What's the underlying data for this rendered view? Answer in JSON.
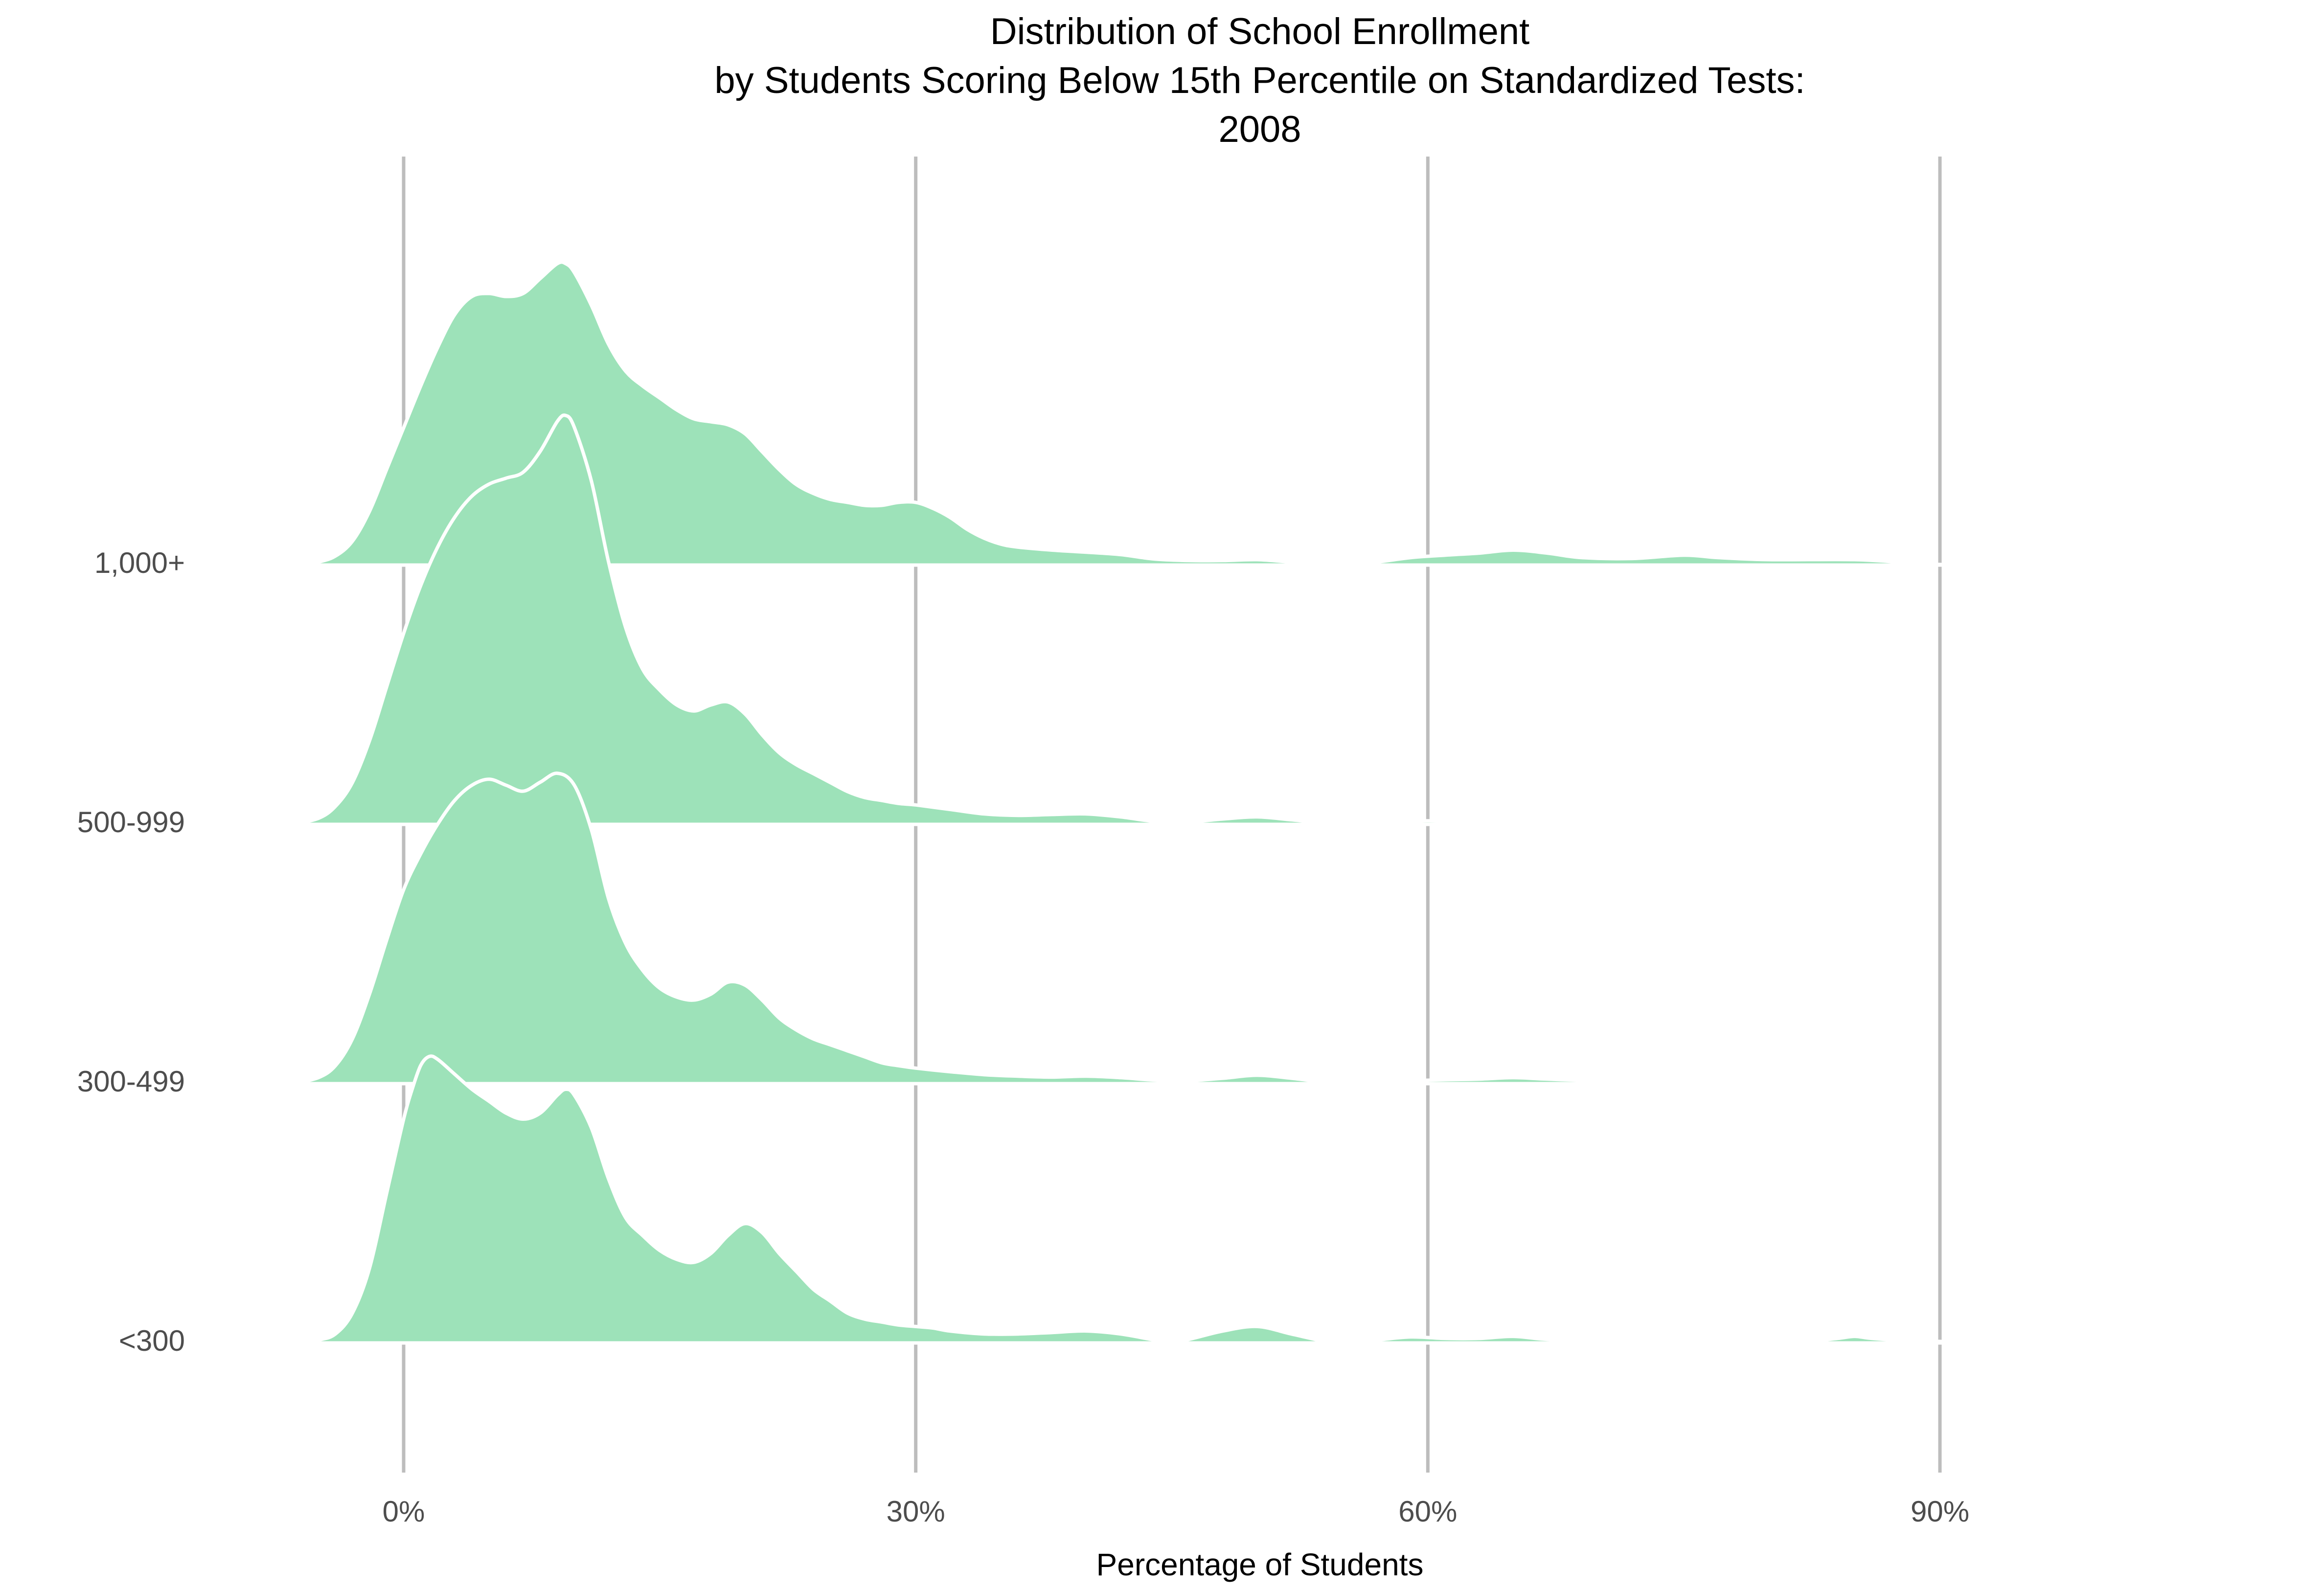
{
  "chart_data": {
    "type": "ridgeline",
    "title": [
      "Distribution of School Enrollment",
      "by Students Scoring Below 15th Percentile on Standardized Tests:",
      "2008"
    ],
    "xlabel": "Percentage of Students",
    "ylabel": "",
    "x_ticks": [
      {
        "value": 0,
        "label": "0%"
      },
      {
        "value": 30,
        "label": "30%"
      },
      {
        "value": 60,
        "label": "60%"
      },
      {
        "value": 90,
        "label": "90%"
      }
    ],
    "xlim": [
      -6.5,
      110
    ],
    "grid": {
      "vertical": true,
      "horizontal": false
    },
    "fill_color": "#9de2b9",
    "outline_color": "#ffffff",
    "gridline_color": "#bdbdbd",
    "density_scale_max": 1.0,
    "series": [
      {
        "name": "<300",
        "points": [
          [
            -6.5,
            0
          ],
          [
            -5,
            0.01
          ],
          [
            -4,
            0.03
          ],
          [
            -3,
            0.1
          ],
          [
            -2,
            0.25
          ],
          [
            -1,
            0.5
          ],
          [
            0,
            0.75
          ],
          [
            0.5,
            0.85
          ],
          [
            1,
            0.93
          ],
          [
            1.5,
            0.96
          ],
          [
            2,
            0.95
          ],
          [
            3,
            0.9
          ],
          [
            4,
            0.85
          ],
          [
            5,
            0.81
          ],
          [
            6,
            0.77
          ],
          [
            7,
            0.75
          ],
          [
            8,
            0.77
          ],
          [
            9,
            0.83
          ],
          [
            9.5,
            0.85
          ],
          [
            10,
            0.83
          ],
          [
            11,
            0.72
          ],
          [
            12,
            0.55
          ],
          [
            13,
            0.42
          ],
          [
            14,
            0.36
          ],
          [
            15,
            0.31
          ],
          [
            16,
            0.28
          ],
          [
            17,
            0.27
          ],
          [
            18,
            0.3
          ],
          [
            19,
            0.36
          ],
          [
            20,
            0.4
          ],
          [
            21,
            0.37
          ],
          [
            22,
            0.3
          ],
          [
            23,
            0.24
          ],
          [
            24,
            0.18
          ],
          [
            25,
            0.14
          ],
          [
            26,
            0.1
          ],
          [
            27,
            0.08
          ],
          [
            28,
            0.07
          ],
          [
            29,
            0.06
          ],
          [
            30,
            0.055
          ],
          [
            31,
            0.05
          ],
          [
            32,
            0.04
          ],
          [
            34,
            0.03
          ],
          [
            36,
            0.03
          ],
          [
            38,
            0.035
          ],
          [
            40,
            0.04
          ],
          [
            42,
            0.03
          ],
          [
            44,
            0.01
          ],
          [
            45,
            0.005
          ],
          [
            46,
            0.012
          ],
          [
            48,
            0.04
          ],
          [
            50,
            0.055
          ],
          [
            52,
            0.03
          ],
          [
            54,
            0.005
          ],
          [
            55,
            0.003
          ],
          [
            57,
            0.01
          ],
          [
            59,
            0.02
          ],
          [
            61,
            0.015
          ],
          [
            63,
            0.015
          ],
          [
            65,
            0.022
          ],
          [
            67,
            0.012
          ],
          [
            70,
            0.01
          ],
          [
            75,
            0.008
          ],
          [
            78,
            0.004
          ],
          [
            80,
            0.002
          ],
          [
            82,
            0.004
          ],
          [
            84,
            0.015
          ],
          [
            85,
            0.022
          ],
          [
            86,
            0.015
          ],
          [
            88,
            0.008
          ],
          [
            90,
            0.005
          ],
          [
            92,
            0.004
          ],
          [
            94,
            0.002
          ],
          [
            96,
            0.001
          ],
          [
            98,
            0.004
          ],
          [
            100,
            0.008
          ],
          [
            102,
            0.004
          ],
          [
            103,
            0
          ]
        ]
      },
      {
        "name": "300-499",
        "points": [
          [
            -6.5,
            0
          ],
          [
            -5,
            0.02
          ],
          [
            -4,
            0.06
          ],
          [
            -3,
            0.15
          ],
          [
            -2,
            0.3
          ],
          [
            -1,
            0.48
          ],
          [
            0,
            0.65
          ],
          [
            1,
            0.77
          ],
          [
            2,
            0.87
          ],
          [
            3,
            0.95
          ],
          [
            4,
            1.0
          ],
          [
            5,
            1.02
          ],
          [
            6,
            1.0
          ],
          [
            7,
            0.98
          ],
          [
            8,
            1.01
          ],
          [
            9,
            1.04
          ],
          [
            10,
            1.0
          ],
          [
            11,
            0.85
          ],
          [
            12,
            0.62
          ],
          [
            13,
            0.47
          ],
          [
            14,
            0.38
          ],
          [
            15,
            0.32
          ],
          [
            16,
            0.29
          ],
          [
            17,
            0.28
          ],
          [
            18,
            0.3
          ],
          [
            19,
            0.34
          ],
          [
            20,
            0.33
          ],
          [
            21,
            0.28
          ],
          [
            22,
            0.22
          ],
          [
            23,
            0.18
          ],
          [
            24,
            0.15
          ],
          [
            25,
            0.13
          ],
          [
            26,
            0.11
          ],
          [
            27,
            0.09
          ],
          [
            28,
            0.07
          ],
          [
            29,
            0.06
          ],
          [
            30,
            0.052
          ],
          [
            32,
            0.04
          ],
          [
            34,
            0.03
          ],
          [
            36,
            0.025
          ],
          [
            38,
            0.022
          ],
          [
            40,
            0.025
          ],
          [
            42,
            0.02
          ],
          [
            44,
            0.012
          ],
          [
            46,
            0.01
          ],
          [
            48,
            0.018
          ],
          [
            50,
            0.028
          ],
          [
            52,
            0.018
          ],
          [
            54,
            0.005
          ],
          [
            55,
            0.003
          ],
          [
            57,
            0.005
          ],
          [
            59,
            0.01
          ],
          [
            61,
            0.013
          ],
          [
            63,
            0.015
          ],
          [
            65,
            0.02
          ],
          [
            67,
            0.015
          ],
          [
            70,
            0.01
          ],
          [
            75,
            0.01
          ],
          [
            80,
            0.008
          ],
          [
            85,
            0.004
          ],
          [
            88,
            0
          ]
        ]
      },
      {
        "name": "500-999",
        "points": [
          [
            -6.5,
            0
          ],
          [
            -5,
            0.02
          ],
          [
            -4,
            0.06
          ],
          [
            -3,
            0.14
          ],
          [
            -2,
            0.28
          ],
          [
            -1,
            0.46
          ],
          [
            0,
            0.64
          ],
          [
            1,
            0.8
          ],
          [
            2,
            0.93
          ],
          [
            3,
            1.03
          ],
          [
            4,
            1.1
          ],
          [
            5,
            1.14
          ],
          [
            6,
            1.16
          ],
          [
            7,
            1.18
          ],
          [
            8,
            1.25
          ],
          [
            9,
            1.35
          ],
          [
            9.5,
            1.37
          ],
          [
            10,
            1.33
          ],
          [
            11,
            1.15
          ],
          [
            12,
            0.88
          ],
          [
            13,
            0.66
          ],
          [
            14,
            0.52
          ],
          [
            15,
            0.45
          ],
          [
            16,
            0.4
          ],
          [
            17,
            0.38
          ],
          [
            18,
            0.4
          ],
          [
            19,
            0.41
          ],
          [
            20,
            0.37
          ],
          [
            21,
            0.3
          ],
          [
            22,
            0.24
          ],
          [
            23,
            0.2
          ],
          [
            24,
            0.17
          ],
          [
            25,
            0.14
          ],
          [
            26,
            0.11
          ],
          [
            27,
            0.09
          ],
          [
            28,
            0.08
          ],
          [
            29,
            0.07
          ],
          [
            30,
            0.065
          ],
          [
            32,
            0.05
          ],
          [
            34,
            0.035
          ],
          [
            36,
            0.03
          ],
          [
            38,
            0.033
          ],
          [
            40,
            0.035
          ],
          [
            42,
            0.025
          ],
          [
            44,
            0.01
          ],
          [
            46,
            0.008
          ],
          [
            48,
            0.018
          ],
          [
            50,
            0.025
          ],
          [
            52,
            0.015
          ],
          [
            54,
            0.005
          ],
          [
            56,
            0.005
          ],
          [
            58,
            0.007
          ],
          [
            60,
            0.012
          ],
          [
            62,
            0.008
          ],
          [
            65,
            0.006
          ],
          [
            70,
            0.005
          ],
          [
            75,
            0.003
          ],
          [
            80,
            0.004
          ],
          [
            85,
            0.003
          ],
          [
            88,
            0
          ]
        ]
      },
      {
        "name": "1,000+",
        "points": [
          [
            -6,
            0
          ],
          [
            -5,
            0.01
          ],
          [
            -4,
            0.03
          ],
          [
            -3,
            0.08
          ],
          [
            -2,
            0.18
          ],
          [
            -1,
            0.32
          ],
          [
            0,
            0.46
          ],
          [
            1,
            0.6
          ],
          [
            2,
            0.73
          ],
          [
            3,
            0.84
          ],
          [
            4,
            0.9
          ],
          [
            5,
            0.91
          ],
          [
            6,
            0.9
          ],
          [
            7,
            0.91
          ],
          [
            8,
            0.96
          ],
          [
            9,
            1.01
          ],
          [
            9.5,
            1.01
          ],
          [
            10,
            0.98
          ],
          [
            11,
            0.87
          ],
          [
            12,
            0.74
          ],
          [
            13,
            0.65
          ],
          [
            14,
            0.6
          ],
          [
            15,
            0.56
          ],
          [
            16,
            0.52
          ],
          [
            17,
            0.49
          ],
          [
            18,
            0.48
          ],
          [
            19,
            0.47
          ],
          [
            20,
            0.44
          ],
          [
            21,
            0.38
          ],
          [
            22,
            0.32
          ],
          [
            23,
            0.27
          ],
          [
            24,
            0.24
          ],
          [
            25,
            0.22
          ],
          [
            26,
            0.21
          ],
          [
            27,
            0.2
          ],
          [
            28,
            0.2
          ],
          [
            29,
            0.21
          ],
          [
            30,
            0.21
          ],
          [
            31,
            0.19
          ],
          [
            32,
            0.16
          ],
          [
            33,
            0.12
          ],
          [
            34,
            0.09
          ],
          [
            35,
            0.07
          ],
          [
            36,
            0.06
          ],
          [
            38,
            0.05
          ],
          [
            40,
            0.043
          ],
          [
            42,
            0.035
          ],
          [
            44,
            0.02
          ],
          [
            46,
            0.015
          ],
          [
            48,
            0.015
          ],
          [
            50,
            0.018
          ],
          [
            52,
            0.01
          ],
          [
            54,
            0.002
          ],
          [
            55,
            0.001
          ],
          [
            57,
            0.01
          ],
          [
            59,
            0.025
          ],
          [
            61,
            0.033
          ],
          [
            63,
            0.04
          ],
          [
            65,
            0.05
          ],
          [
            67,
            0.04
          ],
          [
            69,
            0.025
          ],
          [
            72,
            0.022
          ],
          [
            75,
            0.033
          ],
          [
            77,
            0.025
          ],
          [
            80,
            0.018
          ],
          [
            85,
            0.018
          ],
          [
            88,
            0.008
          ],
          [
            90,
            0.002
          ],
          [
            92,
            0.001
          ],
          [
            95,
            0
          ]
        ]
      }
    ]
  }
}
